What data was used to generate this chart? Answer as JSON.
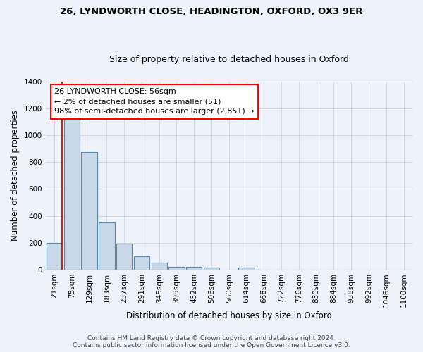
{
  "title_line1": "26, LYNDWORTH CLOSE, HEADINGTON, OXFORD, OX3 9ER",
  "title_line2": "Size of property relative to detached houses in Oxford",
  "xlabel": "Distribution of detached houses by size in Oxford",
  "ylabel": "Number of detached properties",
  "categories": [
    "21sqm",
    "75sqm",
    "129sqm",
    "183sqm",
    "237sqm",
    "291sqm",
    "345sqm",
    "399sqm",
    "452sqm",
    "506sqm",
    "560sqm",
    "614sqm",
    "668sqm",
    "722sqm",
    "776sqm",
    "830sqm",
    "884sqm",
    "938sqm",
    "992sqm",
    "1046sqm",
    "1100sqm"
  ],
  "values": [
    200,
    1130,
    875,
    350,
    195,
    97,
    53,
    23,
    21,
    15,
    0,
    15,
    0,
    0,
    0,
    0,
    0,
    0,
    0,
    0,
    0
  ],
  "bar_color": "#c8d8e8",
  "bar_edge_color": "#5588aa",
  "annotation_line1": "26 LYNDWORTH CLOSE: 56sqm",
  "annotation_line2": "← 2% of detached houses are smaller (51)",
  "annotation_line3": "98% of semi-detached houses are larger (2,851) →",
  "vline_color": "#cc2222",
  "ylim": [
    0,
    1400
  ],
  "yticks": [
    0,
    200,
    400,
    600,
    800,
    1000,
    1200,
    1400
  ],
  "background_color": "#eef2fa",
  "grid_color": "#cccccc",
  "footer_line1": "Contains HM Land Registry data © Crown copyright and database right 2024.",
  "footer_line2": "Contains public sector information licensed under the Open Government Licence v3.0.",
  "title_fontsize": 9.5,
  "subtitle_fontsize": 9,
  "ylabel_fontsize": 8.5,
  "xlabel_fontsize": 8.5,
  "tick_fontsize": 7.5,
  "footer_fontsize": 6.5
}
